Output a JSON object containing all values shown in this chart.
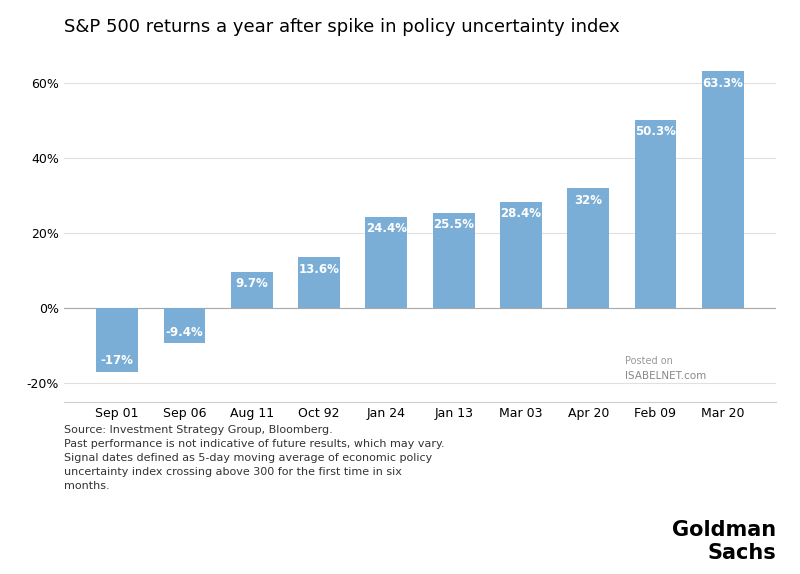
{
  "title": "S&P 500 returns a year after spike in policy uncertainty index",
  "categories": [
    "Sep 01",
    "Sep 06",
    "Aug 11",
    "Oct 92",
    "Jan 24",
    "Jan 13",
    "Mar 03",
    "Apr 20",
    "Feb 09",
    "Mar 20"
  ],
  "values": [
    -17.0,
    -9.4,
    9.7,
    13.6,
    24.4,
    25.5,
    28.4,
    32.0,
    50.3,
    63.3
  ],
  "labels": [
    "-17%",
    "-9.4%",
    "9.7%",
    "13.6%",
    "24.4%",
    "25.5%",
    "28.4%",
    "32%",
    "50.3%",
    "63.3%"
  ],
  "bar_color": "#7aaed6",
  "label_color": "white",
  "background_color": "#ffffff",
  "ylim": [
    -25,
    70
  ],
  "yticks": [
    -20,
    0,
    20,
    40,
    60
  ],
  "ytick_labels": [
    "-20%",
    "0%",
    "20%",
    "40%",
    "60%"
  ],
  "footnote": "Source: Investment Strategy Group, Bloomberg.\nPast performance is not indicative of future results, which may vary.\nSignal dates defined as 5-day moving average of economic policy\nuncertainty index crossing above 300 for the first time in six\nmonths.",
  "watermark_line1": "Posted on",
  "watermark_line2": "ISABELNET.com",
  "brand_text": "Goldman\nSachs",
  "title_fontsize": 13,
  "label_fontsize": 8.5,
  "footnote_fontsize": 8,
  "brand_fontsize": 15,
  "tick_fontsize": 9,
  "grid_color": "#e0e0e0",
  "spine_color": "#cccccc"
}
